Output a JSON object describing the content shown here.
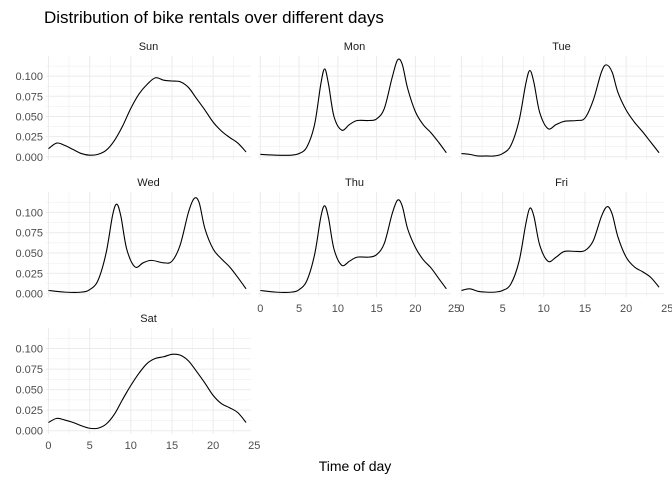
{
  "chart_data": {
    "type": "line",
    "chart_kind": "faceted density",
    "title": "Distribution of bike rentals over different days",
    "xlabel": "Time of day",
    "ylabel": "",
    "xlim": [
      0,
      24
    ],
    "ylim": [
      0,
      0.12
    ],
    "x_ticks": [
      0,
      5,
      10,
      15,
      20,
      25
    ],
    "y_ticks": [
      0.0,
      0.025,
      0.05,
      0.075,
      0.1
    ],
    "y_tick_labels": [
      "0.000",
      "0.025",
      "0.050",
      "0.075",
      "0.100"
    ],
    "grid": true,
    "line_color": "#000000",
    "grid_color": "#ebebeb",
    "facets": [
      {
        "label": "Sun",
        "points": [
          [
            0,
            0.01
          ],
          [
            1,
            0.017
          ],
          [
            2,
            0.014
          ],
          [
            3,
            0.009
          ],
          [
            4,
            0.004
          ],
          [
            5,
            0.002
          ],
          [
            6,
            0.003
          ],
          [
            7,
            0.008
          ],
          [
            8,
            0.02
          ],
          [
            9,
            0.038
          ],
          [
            10,
            0.06
          ],
          [
            11,
            0.078
          ],
          [
            12,
            0.09
          ],
          [
            13,
            0.098
          ],
          [
            14,
            0.095
          ],
          [
            15,
            0.094
          ],
          [
            16,
            0.093
          ],
          [
            17,
            0.086
          ],
          [
            18,
            0.072
          ],
          [
            19,
            0.058
          ],
          [
            20,
            0.043
          ],
          [
            21,
            0.032
          ],
          [
            22,
            0.024
          ],
          [
            23,
            0.017
          ],
          [
            24,
            0.006
          ]
        ]
      },
      {
        "label": "Mon",
        "points": [
          [
            0,
            0.003
          ],
          [
            2,
            0.002
          ],
          [
            4,
            0.002
          ],
          [
            5,
            0.004
          ],
          [
            6,
            0.012
          ],
          [
            7,
            0.04
          ],
          [
            7.8,
            0.09
          ],
          [
            8.3,
            0.109
          ],
          [
            8.8,
            0.09
          ],
          [
            9.5,
            0.05
          ],
          [
            10.5,
            0.033
          ],
          [
            11.5,
            0.04
          ],
          [
            12.5,
            0.045
          ],
          [
            14,
            0.045
          ],
          [
            15,
            0.047
          ],
          [
            16,
            0.06
          ],
          [
            17,
            0.098
          ],
          [
            17.7,
            0.12
          ],
          [
            18.3,
            0.115
          ],
          [
            19,
            0.085
          ],
          [
            20,
            0.056
          ],
          [
            21,
            0.04
          ],
          [
            22,
            0.03
          ],
          [
            23,
            0.018
          ],
          [
            24,
            0.005
          ]
        ]
      },
      {
        "label": "Tue",
        "points": [
          [
            0,
            0.004
          ],
          [
            1,
            0.003
          ],
          [
            2,
            0.001
          ],
          [
            3,
            0.001
          ],
          [
            4,
            0.001
          ],
          [
            5,
            0.004
          ],
          [
            6,
            0.014
          ],
          [
            7,
            0.045
          ],
          [
            7.8,
            0.09
          ],
          [
            8.3,
            0.107
          ],
          [
            8.8,
            0.092
          ],
          [
            9.5,
            0.055
          ],
          [
            10.5,
            0.035
          ],
          [
            11.5,
            0.04
          ],
          [
            12.5,
            0.044
          ],
          [
            14,
            0.045
          ],
          [
            15,
            0.048
          ],
          [
            16,
            0.07
          ],
          [
            17,
            0.105
          ],
          [
            17.6,
            0.114
          ],
          [
            18.3,
            0.105
          ],
          [
            19,
            0.08
          ],
          [
            20,
            0.058
          ],
          [
            21,
            0.043
          ],
          [
            22,
            0.031
          ],
          [
            23,
            0.018
          ],
          [
            24,
            0.005
          ]
        ]
      },
      {
        "label": "Wed",
        "points": [
          [
            0,
            0.004
          ],
          [
            2,
            0.002
          ],
          [
            4,
            0.002
          ],
          [
            5,
            0.005
          ],
          [
            6,
            0.016
          ],
          [
            7,
            0.05
          ],
          [
            7.8,
            0.097
          ],
          [
            8.3,
            0.11
          ],
          [
            8.8,
            0.095
          ],
          [
            9.5,
            0.055
          ],
          [
            10.5,
            0.033
          ],
          [
            11.5,
            0.038
          ],
          [
            12.5,
            0.041
          ],
          [
            14,
            0.038
          ],
          [
            15,
            0.04
          ],
          [
            16,
            0.06
          ],
          [
            17,
            0.1
          ],
          [
            17.7,
            0.117
          ],
          [
            18.3,
            0.112
          ],
          [
            19,
            0.08
          ],
          [
            20,
            0.055
          ],
          [
            21,
            0.043
          ],
          [
            22,
            0.033
          ],
          [
            23,
            0.02
          ],
          [
            24,
            0.006
          ]
        ]
      },
      {
        "label": "Thu",
        "points": [
          [
            0,
            0.004
          ],
          [
            2,
            0.002
          ],
          [
            4,
            0.002
          ],
          [
            5,
            0.005
          ],
          [
            6,
            0.016
          ],
          [
            7,
            0.048
          ],
          [
            7.8,
            0.094
          ],
          [
            8.3,
            0.108
          ],
          [
            8.8,
            0.093
          ],
          [
            9.5,
            0.055
          ],
          [
            10.5,
            0.035
          ],
          [
            11.5,
            0.04
          ],
          [
            12.5,
            0.045
          ],
          [
            14,
            0.045
          ],
          [
            15,
            0.048
          ],
          [
            16,
            0.062
          ],
          [
            17,
            0.098
          ],
          [
            17.7,
            0.115
          ],
          [
            18.3,
            0.108
          ],
          [
            19,
            0.08
          ],
          [
            20,
            0.057
          ],
          [
            21,
            0.042
          ],
          [
            22,
            0.032
          ],
          [
            23,
            0.019
          ],
          [
            24,
            0.006
          ]
        ]
      },
      {
        "label": "Fri",
        "points": [
          [
            0,
            0.004
          ],
          [
            1,
            0.006
          ],
          [
            2,
            0.003
          ],
          [
            3,
            0.002
          ],
          [
            4,
            0.002
          ],
          [
            5,
            0.004
          ],
          [
            6,
            0.012
          ],
          [
            7,
            0.04
          ],
          [
            7.8,
            0.085
          ],
          [
            8.3,
            0.105
          ],
          [
            8.8,
            0.095
          ],
          [
            9.5,
            0.06
          ],
          [
            10.5,
            0.04
          ],
          [
            11.5,
            0.045
          ],
          [
            12.5,
            0.052
          ],
          [
            14,
            0.052
          ],
          [
            15,
            0.053
          ],
          [
            16,
            0.065
          ],
          [
            17,
            0.095
          ],
          [
            17.7,
            0.107
          ],
          [
            18.3,
            0.098
          ],
          [
            19,
            0.07
          ],
          [
            20,
            0.045
          ],
          [
            21,
            0.033
          ],
          [
            22,
            0.027
          ],
          [
            23,
            0.02
          ],
          [
            24,
            0.008
          ]
        ]
      },
      {
        "label": "Sat",
        "points": [
          [
            0,
            0.01
          ],
          [
            1,
            0.015
          ],
          [
            2,
            0.013
          ],
          [
            3,
            0.01
          ],
          [
            4,
            0.006
          ],
          [
            5,
            0.003
          ],
          [
            6,
            0.003
          ],
          [
            7,
            0.008
          ],
          [
            8,
            0.02
          ],
          [
            9,
            0.038
          ],
          [
            10,
            0.055
          ],
          [
            11,
            0.07
          ],
          [
            12,
            0.082
          ],
          [
            13,
            0.088
          ],
          [
            14,
            0.09
          ],
          [
            15,
            0.093
          ],
          [
            16,
            0.092
          ],
          [
            17,
            0.085
          ],
          [
            18,
            0.072
          ],
          [
            19,
            0.058
          ],
          [
            20,
            0.043
          ],
          [
            21,
            0.033
          ],
          [
            22,
            0.028
          ],
          [
            23,
            0.022
          ],
          [
            24,
            0.01
          ]
        ]
      }
    ]
  }
}
